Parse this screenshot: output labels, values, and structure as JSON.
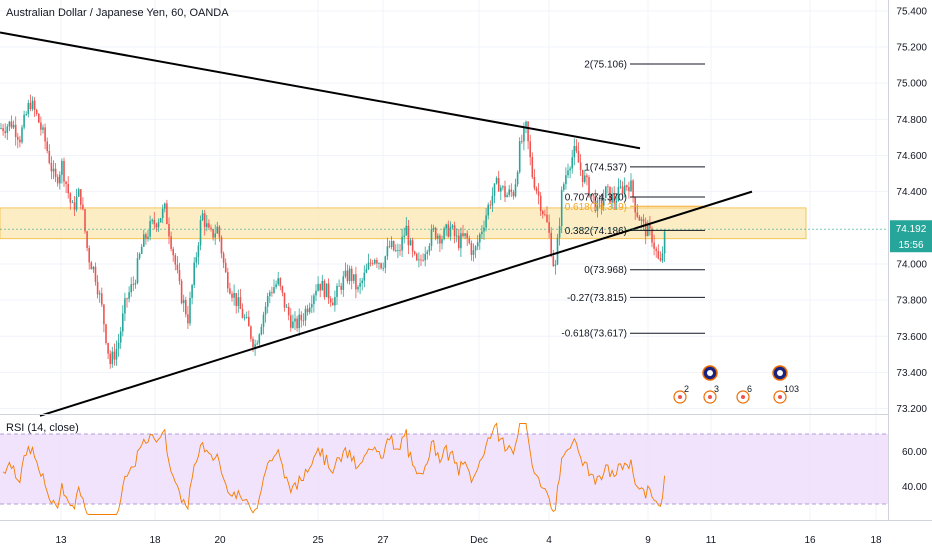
{
  "header": {
    "title": "Australian Dollar / Japanese Yen, 60, OANDA"
  },
  "rsi": {
    "label": "RSI (14, close)"
  },
  "colors": {
    "candle_up": "#26a69a",
    "candle_down": "#ef5350",
    "zone_fill": "#fbe7b0",
    "zone_stroke": "#f2c65c",
    "rsi_line": "#f57c00",
    "rsi_band": "#efe0fb",
    "price_tag": "#26a69a",
    "trendline": "#000000"
  },
  "price_tag": {
    "value": "74.192",
    "timer": "15:56"
  },
  "icons": [
    {
      "name": "event-icon-2",
      "count": "2"
    },
    {
      "name": "event-icon-3",
      "count": "3"
    },
    {
      "name": "event-icon-6",
      "count": "6"
    },
    {
      "name": "event-icon-103",
      "count": "103"
    }
  ],
  "chart_data": {
    "type": "candlestick",
    "title": "Australian Dollar / Japanese Yen, 60, OANDA",
    "y_axis": {
      "min": 73.17,
      "max": 75.46,
      "ticks": [
        "75.400",
        "75.200",
        "75.000",
        "74.800",
        "74.600",
        "74.400",
        "74.000",
        "73.800",
        "73.600",
        "73.400",
        "73.200"
      ]
    },
    "x_axis": {
      "tick_labels": [
        "13",
        "18",
        "20",
        "25",
        "27",
        "Dec",
        "4",
        "9",
        "11",
        "16",
        "18"
      ]
    },
    "fibonacci_levels": [
      {
        "label": "2(75.106)",
        "value": 75.106
      },
      {
        "label": "1(74.537)",
        "value": 74.537
      },
      {
        "label": "0.707(74.370)",
        "value": 74.37
      },
      {
        "label": "0.618(74.319)",
        "value": 74.319
      },
      {
        "label": "0.382(74.186)",
        "value": 74.186
      },
      {
        "label": "0(73.968)",
        "value": 73.968
      },
      {
        "label": "-0.27(73.815)",
        "value": 73.815
      },
      {
        "label": "-0.618(73.617)",
        "value": 73.617
      }
    ],
    "zone": {
      "from": 74.14,
      "to": 74.31
    },
    "trendlines": [
      {
        "from": {
          "bar": 0,
          "price": 75.28
        },
        "to": {
          "bar": 640,
          "price": 74.64
        }
      },
      {
        "from": {
          "bar": 40,
          "price": 73.16
        },
        "to": {
          "bar": 752,
          "price": 74.4
        }
      }
    ],
    "waypoints": [
      [
        0,
        74.75
      ],
      [
        12,
        74.78
      ],
      [
        20,
        74.7
      ],
      [
        30,
        74.9
      ],
      [
        38,
        74.8
      ],
      [
        45,
        74.68
      ],
      [
        55,
        74.45
      ],
      [
        62,
        74.55
      ],
      [
        72,
        74.3
      ],
      [
        80,
        74.4
      ],
      [
        88,
        74.05
      ],
      [
        95,
        73.95
      ],
      [
        102,
        73.75
      ],
      [
        110,
        73.45
      ],
      [
        118,
        73.55
      ],
      [
        126,
        73.8
      ],
      [
        134,
        73.9
      ],
      [
        142,
        74.1
      ],
      [
        150,
        74.2
      ],
      [
        158,
        74.25
      ],
      [
        165,
        74.3
      ],
      [
        172,
        74.1
      ],
      [
        180,
        73.85
      ],
      [
        188,
        73.7
      ],
      [
        195,
        74.0
      ],
      [
        202,
        74.28
      ],
      [
        210,
        74.15
      ],
      [
        218,
        74.2
      ],
      [
        225,
        73.95
      ],
      [
        232,
        73.85
      ],
      [
        240,
        73.75
      ],
      [
        248,
        73.65
      ],
      [
        255,
        73.55
      ],
      [
        262,
        73.7
      ],
      [
        270,
        73.85
      ],
      [
        278,
        73.9
      ],
      [
        286,
        73.75
      ],
      [
        294,
        73.65
      ],
      [
        302,
        73.7
      ],
      [
        310,
        73.8
      ],
      [
        318,
        73.9
      ],
      [
        326,
        73.85
      ],
      [
        334,
        73.8
      ],
      [
        342,
        73.9
      ],
      [
        350,
        73.95
      ],
      [
        358,
        73.85
      ],
      [
        366,
        73.95
      ],
      [
        374,
        74.05
      ],
      [
        382,
        74.0
      ],
      [
        390,
        74.1
      ],
      [
        398,
        74.05
      ],
      [
        406,
        74.2
      ],
      [
        412,
        74.05
      ],
      [
        418,
        73.98
      ],
      [
        426,
        74.1
      ],
      [
        434,
        74.18
      ],
      [
        442,
        74.15
      ],
      [
        450,
        74.2
      ],
      [
        458,
        74.12
      ],
      [
        466,
        74.15
      ],
      [
        474,
        74.05
      ],
      [
        482,
        74.2
      ],
      [
        490,
        74.35
      ],
      [
        498,
        74.45
      ],
      [
        506,
        74.38
      ],
      [
        514,
        74.4
      ],
      [
        520,
        74.65
      ],
      [
        526,
        74.75
      ],
      [
        532,
        74.5
      ],
      [
        540,
        74.35
      ],
      [
        548,
        74.2
      ],
      [
        555,
        73.95
      ],
      [
        562,
        74.4
      ],
      [
        568,
        74.55
      ],
      [
        575,
        74.62
      ],
      [
        582,
        74.5
      ],
      [
        590,
        74.4
      ],
      [
        598,
        74.3
      ],
      [
        606,
        74.4
      ],
      [
        614,
        74.35
      ],
      [
        622,
        74.42
      ],
      [
        630,
        74.45
      ],
      [
        636,
        74.3
      ],
      [
        644,
        74.2
      ],
      [
        652,
        74.15
      ],
      [
        660,
        73.98
      ],
      [
        666,
        74.192
      ]
    ],
    "rsi_series": {
      "name": "RSI (14, close)",
      "y_axis": {
        "min": 22,
        "max": 78,
        "ticks": [
          "60.00",
          "40.00"
        ]
      },
      "overbought": 70,
      "oversold": 30
    }
  }
}
